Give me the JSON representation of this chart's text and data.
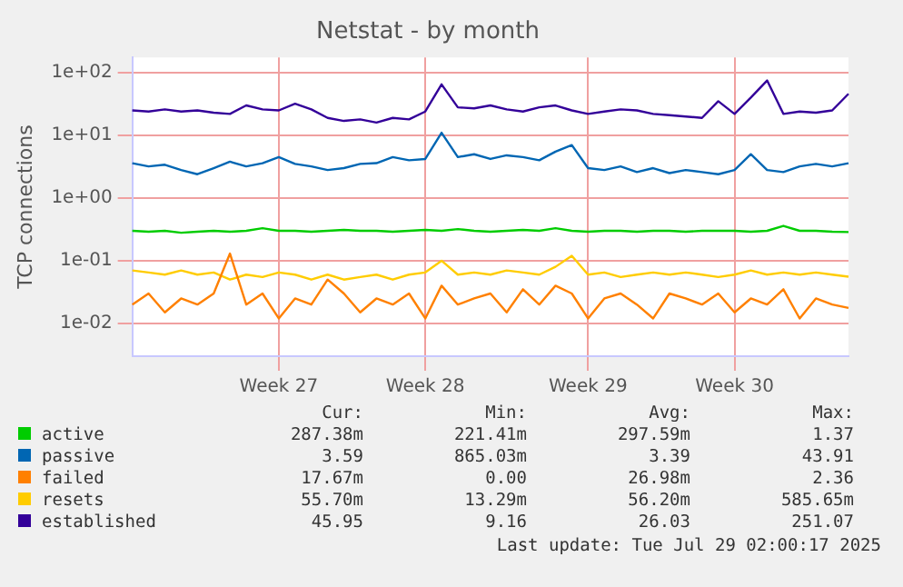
{
  "chart_data": {
    "type": "line",
    "title": "Netstat - by month",
    "ylabel": "TCP connections",
    "log": "y",
    "grid": true,
    "legend": "bottom",
    "marker": "none",
    "line_style": "solid",
    "categories": [
      null,
      null,
      null,
      null,
      null,
      null,
      null,
      null,
      null,
      "Week 27",
      null,
      null,
      null,
      null,
      null,
      null,
      null,
      null,
      "Week 28",
      null,
      null,
      null,
      null,
      null,
      null,
      null,
      null,
      null,
      "Week 29",
      null,
      null,
      null,
      null,
      null,
      null,
      null,
      null,
      "Week 30",
      null,
      null,
      null,
      null,
      null,
      null,
      null
    ],
    "ylim": [
      0.003,
      175
    ],
    "yticks": [
      {
        "value": 0.01,
        "label": "1e-02"
      },
      {
        "value": 0.1,
        "label": "1e-01"
      },
      {
        "value": 1,
        "label": "1e+00"
      },
      {
        "value": 10,
        "label": "1e+01"
      },
      {
        "value": 100,
        "label": "1e+02"
      }
    ],
    "series": [
      {
        "name": "active",
        "color": "#00cc00",
        "values": [
          0.3,
          0.29,
          0.3,
          0.28,
          0.29,
          0.3,
          0.29,
          0.3,
          0.33,
          0.3,
          0.3,
          0.29,
          0.3,
          0.31,
          0.3,
          0.3,
          0.29,
          0.3,
          0.31,
          0.3,
          0.32,
          0.3,
          0.29,
          0.3,
          0.31,
          0.3,
          0.33,
          0.3,
          0.29,
          0.3,
          0.3,
          0.29,
          0.3,
          0.3,
          0.29,
          0.3,
          0.3,
          0.3,
          0.29,
          0.3,
          0.36,
          0.3,
          0.3,
          0.29,
          0.287
        ]
      },
      {
        "name": "passive",
        "color": "#0066b3",
        "values": [
          3.6,
          3.2,
          3.4,
          2.8,
          2.4,
          3,
          3.8,
          3.2,
          3.6,
          4.5,
          3.5,
          3.2,
          2.8,
          3,
          3.5,
          3.6,
          4.5,
          4,
          4.2,
          11,
          4.5,
          5,
          4.2,
          4.8,
          4.5,
          4,
          5.5,
          7,
          3,
          2.8,
          3.2,
          2.6,
          3,
          2.5,
          2.8,
          2.6,
          2.4,
          2.8,
          5,
          2.8,
          2.6,
          3.2,
          3.5,
          3.2,
          3.59
        ]
      },
      {
        "name": "failed",
        "color": "#ff8000",
        "values": [
          0.02,
          0.03,
          0.015,
          0.025,
          0.02,
          0.03,
          0.13,
          0.02,
          0.03,
          0.012,
          0.025,
          0.02,
          0.05,
          0.03,
          0.015,
          0.025,
          0.02,
          0.03,
          0.012,
          0.04,
          0.02,
          0.025,
          0.03,
          0.015,
          0.035,
          0.02,
          0.04,
          0.03,
          0.012,
          0.025,
          0.03,
          0.02,
          0.012,
          0.03,
          0.025,
          0.02,
          0.03,
          0.015,
          0.025,
          0.02,
          0.035,
          0.012,
          0.025,
          0.02,
          0.0177
        ]
      },
      {
        "name": "resets",
        "color": "#ffcc00",
        "values": [
          0.07,
          0.065,
          0.06,
          0.07,
          0.06,
          0.065,
          0.05,
          0.06,
          0.055,
          0.065,
          0.06,
          0.05,
          0.06,
          0.05,
          0.055,
          0.06,
          0.05,
          0.06,
          0.065,
          0.1,
          0.06,
          0.065,
          0.06,
          0.07,
          0.065,
          0.06,
          0.08,
          0.12,
          0.06,
          0.065,
          0.055,
          0.06,
          0.065,
          0.06,
          0.065,
          0.06,
          0.055,
          0.06,
          0.07,
          0.06,
          0.065,
          0.06,
          0.065,
          0.06,
          0.0557
        ]
      },
      {
        "name": "established",
        "color": "#330099",
        "values": [
          25,
          24,
          26,
          24,
          25,
          23,
          22,
          30,
          26,
          25,
          32,
          26,
          19,
          17,
          18,
          16,
          19,
          18,
          24,
          65,
          28,
          27,
          30,
          26,
          24,
          28,
          30,
          25,
          22,
          24,
          26,
          25,
          22,
          21,
          20,
          19,
          35,
          22,
          40,
          75,
          22,
          24,
          23,
          25,
          45.95
        ]
      }
    ],
    "annotations": [
      "Cur:",
      "Min:",
      "Avg:",
      "Max:",
      "287.38m",
      "221.41m",
      "297.59m",
      "1.37",
      "3.59",
      "865.03m",
      "3.39",
      "43.91",
      "17.67m",
      "0.00",
      "26.98m",
      "2.36",
      "55.70m",
      "13.29m",
      "56.20m",
      "585.65m",
      "45.95",
      "9.16",
      "26.03",
      "251.07",
      "Last update: Tue Jul 29 02:00:17 2025"
    ]
  }
}
